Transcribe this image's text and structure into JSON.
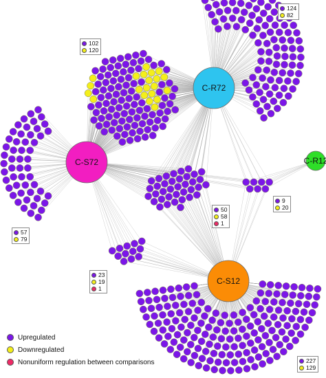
{
  "colors": {
    "upregulated": "#7b16e8",
    "downregulated": "#f4ef1a",
    "nonuniform": "#ef2a66",
    "edge": "#9a9a9a",
    "node_stroke": "#7a7a52"
  },
  "hubs": [
    {
      "id": "C-R72",
      "label": "C-R72",
      "color": "#2ec4ef"
    },
    {
      "id": "C-S72",
      "label": "C-S72",
      "color": "#f21ec1"
    },
    {
      "id": "C-S12",
      "label": "C-S12",
      "color": "#fb8c06"
    },
    {
      "id": "C-R12",
      "label": "C-R12",
      "color": "#2ede28"
    }
  ],
  "clusters": [
    {
      "id": "c-r72-only",
      "hubs": [
        "C-R72"
      ],
      "counts": {
        "up": "124",
        "down": "82"
      }
    },
    {
      "id": "c-r72-c-s72",
      "hubs": [
        "C-R72",
        "C-S72"
      ],
      "counts": {
        "up": "102",
        "down": "120"
      }
    },
    {
      "id": "c-s72-only",
      "hubs": [
        "C-S72"
      ],
      "counts": {
        "up": "57",
        "down": "79"
      }
    },
    {
      "id": "c-r72-c-s72-c-s12",
      "hubs": [
        "C-R72",
        "C-S72",
        "C-S12"
      ],
      "counts": {
        "up": "50",
        "down": "58",
        "nonuniform": "1"
      }
    },
    {
      "id": "c-r72-c-s72-c-s12-c-r12",
      "hubs": [
        "C-R72",
        "C-S72",
        "C-S12",
        "C-R12"
      ],
      "counts": {
        "up": "9",
        "down": "20"
      }
    },
    {
      "id": "c-s72-c-s12",
      "hubs": [
        "C-S72",
        "C-S12"
      ],
      "counts": {
        "up": "23",
        "down": "19",
        "nonuniform": "1"
      }
    },
    {
      "id": "c-s12-only",
      "hubs": [
        "C-S12"
      ],
      "counts": {
        "up": "227",
        "down": "129"
      }
    }
  ],
  "legend": {
    "upregulated": "Upregulated",
    "downregulated": "Downregulated",
    "nonuniform": "Nonuniform regulation between comparisons"
  }
}
